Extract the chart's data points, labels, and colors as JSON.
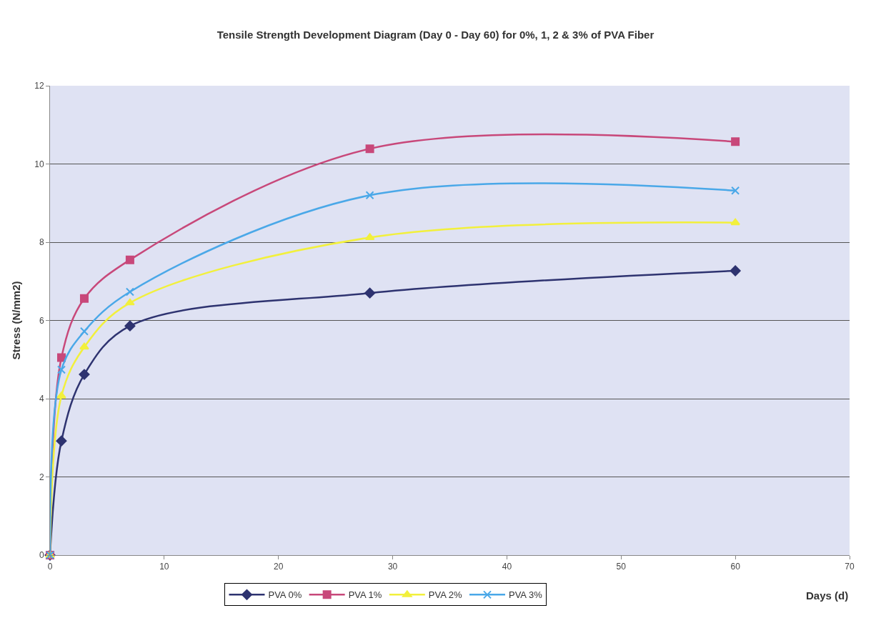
{
  "chart_data": {
    "type": "line",
    "title": "Tensile Strength Development Diagram (Day 0 - Day 60) for 0%, 1, 2 & 3% of PVA Fiber",
    "xlabel": "Days (d)",
    "ylabel": "Stress (N/mm2)",
    "x": [
      0,
      1,
      3,
      7,
      28,
      60
    ],
    "series": [
      {
        "name": "PVA 0%",
        "color": "#2e3370",
        "marker": "diamond",
        "values": [
          0,
          2.92,
          4.62,
          5.86,
          6.7,
          7.27
        ]
      },
      {
        "name": "PVA 1%",
        "color": "#c8487a",
        "marker": "square",
        "values": [
          0,
          5.05,
          6.56,
          7.55,
          10.39,
          10.57
        ]
      },
      {
        "name": "PVA 2%",
        "color": "#f2f03c",
        "marker": "triangle",
        "values": [
          0,
          4.07,
          5.32,
          6.45,
          8.12,
          8.5
        ]
      },
      {
        "name": "PVA 3%",
        "color": "#4aa8e8",
        "marker": "cross",
        "values": [
          0,
          4.74,
          5.72,
          6.73,
          9.2,
          9.32
        ]
      }
    ],
    "xlim": [
      0,
      70
    ],
    "xticks": [
      0,
      10,
      20,
      30,
      40,
      50,
      60,
      70
    ],
    "ylim": [
      0,
      12
    ],
    "yticks": [
      0,
      2,
      4,
      6,
      8,
      10,
      12
    ],
    "grid": "y",
    "legend": "bottom"
  }
}
